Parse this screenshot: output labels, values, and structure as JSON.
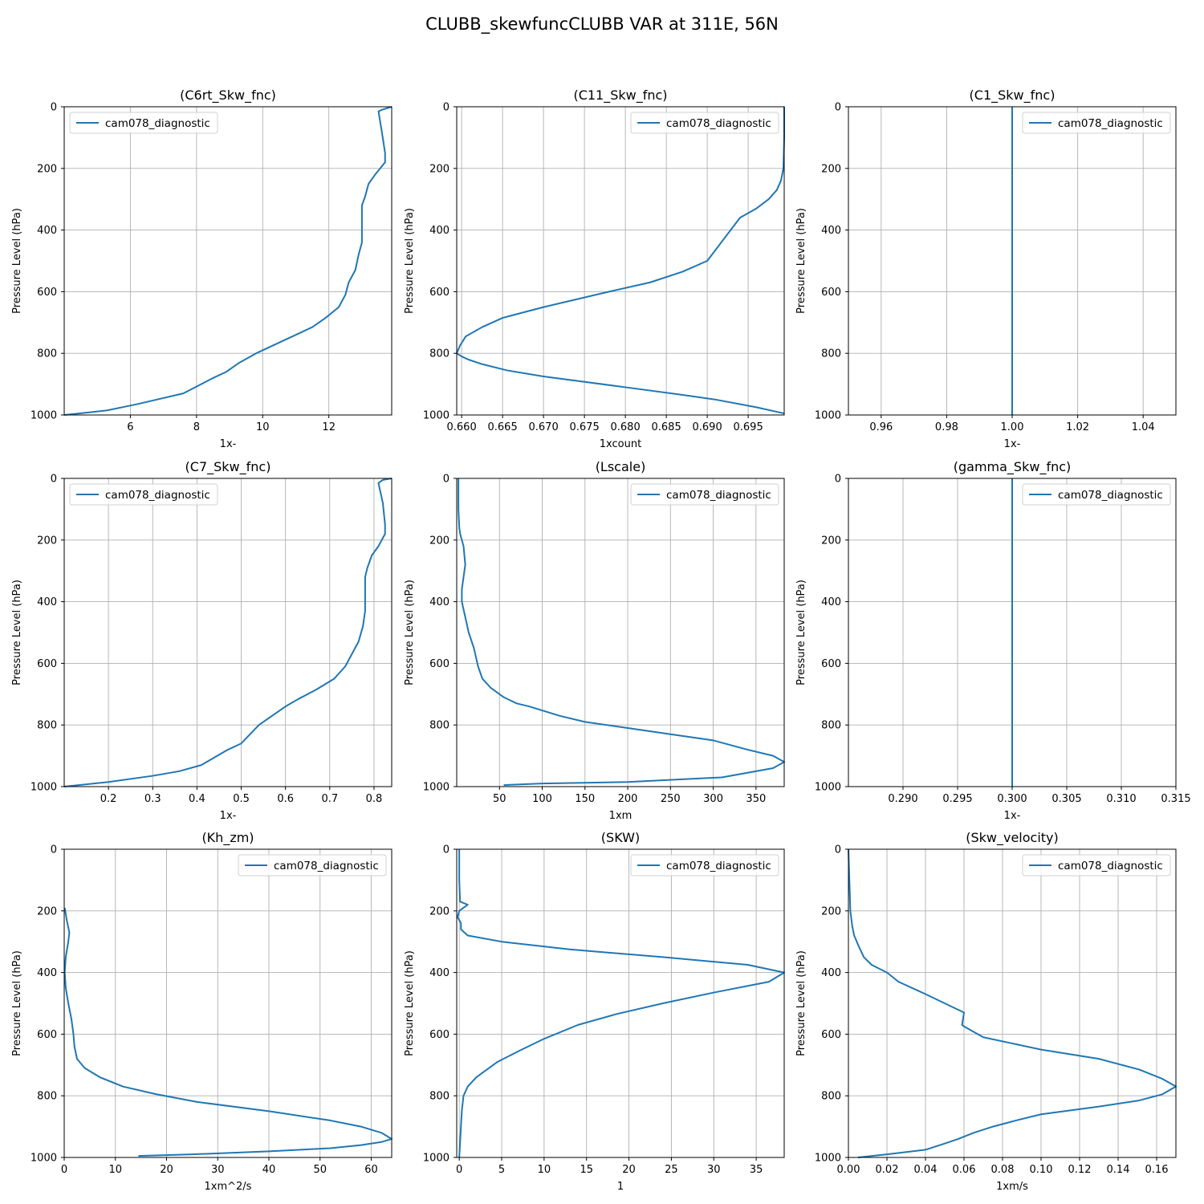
{
  "figure": {
    "title": "CLUBB_skewfuncCLUBB VAR at 311E, 56N",
    "colors": {
      "series": "#1f77b4",
      "grid": "#b0b0b0"
    }
  },
  "chart_data": [
    {
      "type": "line",
      "title": "(C6rt_Skw_fnc)",
      "xlabel": "1x-",
      "ylabel": "Pressure Level (hPa)",
      "xlim": [
        4.0,
        13.9
      ],
      "ylim": [
        1000,
        0
      ],
      "xticks": [
        6,
        8,
        10,
        12
      ],
      "yticks": [
        0,
        200,
        400,
        600,
        800,
        1000
      ],
      "grid": true,
      "legend": "upper left",
      "series": [
        {
          "name": "cam078_diagnostic",
          "x": [
            13.9,
            13.6,
            13.5,
            13.6,
            13.7,
            13.7,
            13.4,
            13.2,
            13.1,
            13.0,
            13.0,
            13.0,
            13.0,
            12.9,
            12.8,
            12.6,
            12.5,
            12.3,
            11.9,
            11.5,
            11.0,
            10.4,
            9.8,
            9.3,
            8.9,
            8.5,
            7.6,
            6.8,
            6.2,
            5.3,
            4.9,
            4.0
          ],
          "y": [
            0,
            10,
            15,
            80,
            150,
            180,
            220,
            250,
            290,
            320,
            350,
            400,
            440,
            480,
            530,
            570,
            610,
            650,
            685,
            715,
            740,
            770,
            800,
            830,
            860,
            880,
            930,
            950,
            965,
            985,
            990,
            1000
          ]
        }
      ]
    },
    {
      "type": "line",
      "title": "(C11_Skw_fnc)",
      "xlabel": "1xcount",
      "ylabel": "Pressure Level (hPa)",
      "xlim": [
        0.6594,
        0.6994
      ],
      "ylim": [
        1000,
        0
      ],
      "xticks": [
        0.66,
        0.665,
        0.67,
        0.675,
        0.68,
        0.685,
        0.69,
        0.695
      ],
      "yticks": [
        0,
        200,
        400,
        600,
        800,
        1000
      ],
      "grid": true,
      "legend": "upper right",
      "series": [
        {
          "name": "cam078_diagnostic",
          "x": [
            0.6994,
            0.6994,
            0.6993,
            0.699,
            0.6985,
            0.6975,
            0.696,
            0.694,
            0.69,
            0.687,
            0.683,
            0.678,
            0.67,
            0.665,
            0.6625,
            0.6605,
            0.6598,
            0.6594,
            0.66,
            0.6608,
            0.6625,
            0.6655,
            0.67,
            0.68,
            0.687,
            0.691,
            0.696,
            0.6994
          ],
          "y": [
            0,
            100,
            200,
            240,
            270,
            300,
            330,
            360,
            500,
            535,
            570,
            600,
            650,
            685,
            715,
            745,
            775,
            800,
            810,
            820,
            835,
            855,
            875,
            910,
            935,
            950,
            975,
            995
          ]
        }
      ]
    },
    {
      "type": "line",
      "title": "(C1_Skw_fnc)",
      "xlabel": "1x-",
      "ylabel": "Pressure Level (hPa)",
      "xlim": [
        0.95,
        1.05
      ],
      "ylim": [
        1000,
        0
      ],
      "xticks": [
        0.96,
        0.98,
        1.0,
        1.02,
        1.04
      ],
      "yticks": [
        0,
        200,
        400,
        600,
        800,
        1000
      ],
      "grid": true,
      "legend": "upper right",
      "series": [
        {
          "name": "cam078_diagnostic",
          "x": [
            1.0,
            1.0
          ],
          "y": [
            0,
            1000
          ]
        }
      ]
    },
    {
      "type": "line",
      "title": "(C7_Skw_fnc)",
      "xlabel": "1x-",
      "ylabel": "Pressure Level (hPa)",
      "xlim": [
        0.1,
        0.84
      ],
      "ylim": [
        1000,
        0
      ],
      "xticks": [
        0.2,
        0.3,
        0.4,
        0.5,
        0.6,
        0.7,
        0.8
      ],
      "yticks": [
        0,
        200,
        400,
        600,
        800,
        1000
      ],
      "grid": true,
      "legend": "upper left",
      "series": [
        {
          "name": "cam078_diagnostic",
          "x": [
            0.84,
            0.82,
            0.81,
            0.82,
            0.825,
            0.825,
            0.81,
            0.795,
            0.785,
            0.78,
            0.78,
            0.78,
            0.78,
            0.775,
            0.765,
            0.75,
            0.735,
            0.71,
            0.67,
            0.63,
            0.6,
            0.57,
            0.54,
            0.52,
            0.5,
            0.47,
            0.41,
            0.36,
            0.3,
            0.2,
            0.1
          ],
          "y": [
            0,
            5,
            15,
            80,
            150,
            180,
            220,
            250,
            290,
            320,
            350,
            400,
            430,
            480,
            530,
            570,
            610,
            650,
            685,
            715,
            740,
            770,
            800,
            830,
            860,
            880,
            930,
            950,
            965,
            985,
            1000
          ]
        }
      ]
    },
    {
      "type": "line",
      "title": "(Lscale)",
      "xlabel": "1xm",
      "ylabel": "Pressure Level (hPa)",
      "xlim": [
        0,
        383
      ],
      "ylim": [
        1000,
        0
      ],
      "xticks": [
        50,
        100,
        150,
        200,
        250,
        300,
        350
      ],
      "yticks": [
        0,
        200,
        400,
        600,
        800,
        1000
      ],
      "grid": true,
      "legend": "upper right",
      "series": [
        {
          "name": "cam078_diagnostic",
          "x": [
            2,
            2,
            3,
            4,
            8,
            10,
            8,
            6,
            6,
            10,
            14,
            20,
            25,
            30,
            40,
            55,
            70,
            85,
            120,
            150,
            200,
            250,
            300,
            340,
            370,
            383,
            370,
            340,
            310,
            200,
            100,
            55
          ],
          "y": [
            0,
            100,
            160,
            180,
            220,
            280,
            320,
            360,
            400,
            450,
            500,
            550,
            610,
            650,
            680,
            710,
            730,
            740,
            770,
            790,
            810,
            830,
            850,
            880,
            900,
            920,
            940,
            955,
            970,
            985,
            990,
            995
          ]
        }
      ]
    },
    {
      "type": "line",
      "title": "(gamma_Skw_fnc)",
      "xlabel": "1x-",
      "ylabel": "Pressure Level (hPa)",
      "xlim": [
        0.285,
        0.315
      ],
      "ylim": [
        1000,
        0
      ],
      "xticks": [
        0.29,
        0.295,
        0.3,
        0.305,
        0.31,
        0.315
      ],
      "yticks": [
        0,
        200,
        400,
        600,
        800,
        1000
      ],
      "grid": true,
      "legend": "upper right",
      "series": [
        {
          "name": "cam078_diagnostic",
          "x": [
            0.3,
            0.3
          ],
          "y": [
            0,
            1000
          ]
        }
      ]
    },
    {
      "type": "line",
      "title": "(Kh_zm)",
      "xlabel": "1xm^2/s",
      "ylabel": "Pressure Level (hPa)",
      "xlim": [
        0,
        64
      ],
      "ylim": [
        1000,
        0
      ],
      "xticks": [
        0,
        10,
        20,
        30,
        40,
        50,
        60
      ],
      "yticks": [
        0,
        200,
        400,
        600,
        800,
        1000
      ],
      "grid": true,
      "legend": "upper right",
      "series": [
        {
          "name": "cam078_diagnostic",
          "x": [
            0.1,
            0.5,
            1.0,
            0.8,
            0.3,
            0.1,
            0.3,
            0.8,
            1.4,
            1.8,
            2.0,
            2.5,
            4.0,
            7.0,
            11.5,
            18.0,
            26.0,
            40.0,
            52.0,
            58.0,
            62.0,
            64.0,
            62.0,
            58.0,
            52.0,
            40.0,
            25.0,
            14.5
          ],
          "y": [
            190,
            230,
            270,
            300,
            350,
            400,
            450,
            500,
            550,
            600,
            640,
            680,
            710,
            740,
            770,
            795,
            820,
            850,
            880,
            900,
            920,
            940,
            950,
            960,
            970,
            980,
            990,
            995
          ]
        }
      ]
    },
    {
      "type": "line",
      "title": "(SKW)",
      "xlabel": "1",
      "ylabel": "Pressure Level (hPa)",
      "xlim": [
        -0.3,
        38.3
      ],
      "ylim": [
        1000,
        0
      ],
      "xticks": [
        0,
        5,
        10,
        15,
        20,
        25,
        30,
        35
      ],
      "yticks": [
        0,
        200,
        400,
        600,
        800,
        1000
      ],
      "grid": true,
      "legend": "upper right",
      "series": [
        {
          "name": "cam078_diagnostic",
          "x": [
            0,
            0,
            0.1,
            1.0,
            0.0,
            -0.2,
            0.2,
            0.2,
            1.0,
            5.0,
            13.0,
            24.0,
            34.0,
            38.3,
            36.5,
            30.0,
            24.0,
            18.5,
            14.0,
            10.0,
            7.0,
            4.5,
            2.0,
            1.0,
            0.5,
            0.3,
            0.2,
            0
          ],
          "y": [
            0,
            100,
            170,
            180,
            200,
            220,
            240,
            260,
            280,
            300,
            325,
            350,
            375,
            400,
            430,
            465,
            500,
            535,
            570,
            615,
            655,
            690,
            740,
            770,
            800,
            850,
            900,
            1000
          ]
        }
      ]
    },
    {
      "type": "line",
      "title": "(Skw_velocity)",
      "xlabel": "1xm/s",
      "ylabel": "Pressure Level (hPa)",
      "xlim": [
        0,
        0.17
      ],
      "ylim": [
        1000,
        0
      ],
      "xticks": [
        0.0,
        0.02,
        0.04,
        0.06,
        0.08,
        0.1,
        0.12,
        0.14,
        0.16
      ],
      "yticks": [
        0,
        200,
        400,
        600,
        800,
        1000
      ],
      "grid": true,
      "legend": "upper right",
      "series": [
        {
          "name": "cam078_diagnostic",
          "x": [
            0.0,
            0.0005,
            0.001,
            0.002,
            0.003,
            0.005,
            0.008,
            0.012,
            0.02,
            0.026,
            0.04,
            0.05,
            0.06,
            0.059,
            0.06,
            0.07,
            0.085,
            0.1,
            0.13,
            0.151,
            0.163,
            0.17,
            0.163,
            0.151,
            0.13,
            0.1,
            0.087,
            0.075,
            0.065,
            0.057,
            0.05,
            0.04,
            0.02,
            0.005
          ],
          "y": [
            0,
            100,
            200,
            250,
            280,
            310,
            350,
            375,
            400,
            430,
            470,
            500,
            530,
            570,
            575,
            610,
            630,
            650,
            680,
            715,
            745,
            770,
            795,
            815,
            835,
            860,
            880,
            900,
            920,
            940,
            955,
            975,
            990,
            1000
          ]
        }
      ]
    }
  ]
}
